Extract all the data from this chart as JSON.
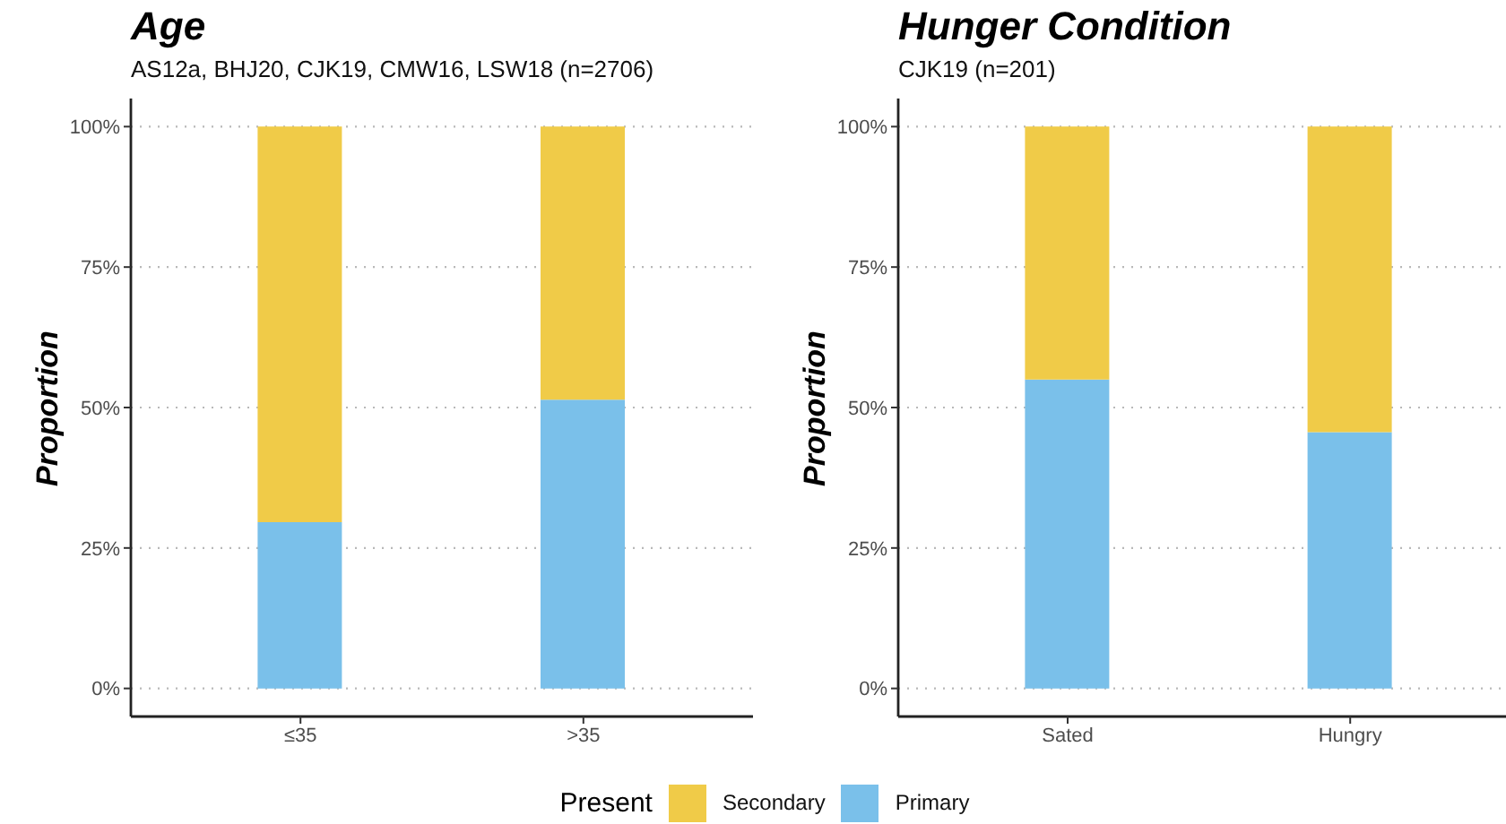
{
  "chart_data": [
    {
      "type": "bar",
      "title": "Age",
      "subtitle": "AS12a, BHJ20, CJK19, CMW16, LSW18 (n=2706)",
      "ylabel": "Proportion",
      "categories": [
        "≤35",
        ">35"
      ],
      "stacked": true,
      "series": [
        {
          "name": "Primary",
          "color": "#7ac0ea",
          "values": [
            29.6,
            51.4
          ]
        },
        {
          "name": "Secondary",
          "color": "#f0cb48",
          "values": [
            70.4,
            48.6
          ]
        }
      ],
      "ylim": [
        -5,
        105
      ],
      "yticks": [
        {
          "value": 0,
          "label": "0%"
        },
        {
          "value": 25,
          "label": "25%"
        },
        {
          "value": 50,
          "label": "50%"
        },
        {
          "value": 75,
          "label": "75%"
        },
        {
          "value": 100,
          "label": "100%"
        }
      ],
      "grid": "y",
      "legend": "bottom",
      "legend_title": "Present"
    },
    {
      "type": "bar",
      "title": "Hunger Condition",
      "subtitle": "CJK19 (n=201)",
      "ylabel": "Proportion",
      "categories": [
        "Sated",
        "Hungry"
      ],
      "stacked": true,
      "series": [
        {
          "name": "Primary",
          "color": "#7ac0ea",
          "values": [
            55.0,
            45.6
          ]
        },
        {
          "name": "Secondary",
          "color": "#f0cb48",
          "values": [
            45.0,
            54.4
          ]
        }
      ],
      "ylim": [
        -5,
        105
      ],
      "yticks": [
        {
          "value": 0,
          "label": "0%"
        },
        {
          "value": 25,
          "label": "25%"
        },
        {
          "value": 50,
          "label": "50%"
        },
        {
          "value": 75,
          "label": "75%"
        },
        {
          "value": 100,
          "label": "100%"
        }
      ],
      "grid": "y",
      "legend": "bottom"
    }
  ]
}
